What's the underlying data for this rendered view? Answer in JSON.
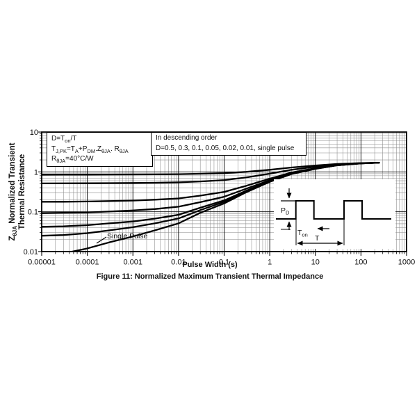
{
  "figure": {
    "caption": "Figure 11: Normalized Maximum Transient Thermal Impedance",
    "x_axis_title": "Pulse Width (s)",
    "y_axis_title": {
      "pre": "Z",
      "sub": "θJA",
      "post": " Normalized Transient",
      "line2": "Thermal Resistance"
    }
  },
  "formula_box": {
    "line1": {
      "p1": "D=T",
      "s1": "on",
      "p2": "/T"
    },
    "line2": {
      "p1": "T",
      "s1": "J,PK",
      "p2": "=T",
      "s2": "A",
      "p3": "+P",
      "s3": "DM",
      "p4": ".Z",
      "s4": "θJA",
      "p5": ". R",
      "s5": "θJA"
    },
    "line3": {
      "p1": "R",
      "s1": "θJA",
      "p2": "=40°C/W"
    }
  },
  "legend_box": {
    "line1": "In descending order",
    "line2": "D=0.5, 0.3, 0.1, 0.05, 0.02, 0.01, single pulse"
  },
  "single_pulse_label": "Single Pulse",
  "inset": {
    "pd_main": "P",
    "pd_sub": "D",
    "ton_main": "T",
    "ton_sub": "on",
    "t_label": "T"
  },
  "chart_data": {
    "type": "line",
    "title": "Normalized Maximum Transient Thermal Impedance",
    "xlabel": "Pulse Width (s)",
    "ylabel": "ZθJA Normalized Transient Thermal Resistance",
    "x_scale": "log",
    "y_scale": "log",
    "xlim": [
      1e-05,
      1000
    ],
    "ylim": [
      0.01,
      10
    ],
    "grid": true,
    "legend_note": "In descending order: D=0.5, 0.3, 0.1, 0.05, 0.02, 0.01, single pulse",
    "x_tick_labels": [
      "0.00001",
      "0.0001",
      "0.001",
      "0.01",
      "0.1",
      "1",
      "10",
      "100",
      "1000"
    ],
    "y_tick_labels": [
      "10",
      "1",
      "0.1",
      "0.01"
    ],
    "x": [
      1e-05,
      3e-05,
      0.0001,
      0.0003,
      0.001,
      0.003,
      0.01,
      0.03,
      0.1,
      0.3,
      1,
      3,
      10,
      30,
      100,
      250
    ],
    "series": [
      {
        "id": "d-0-5",
        "name": "D=0.5",
        "values": [
          0.854,
          0.855,
          0.856,
          0.859,
          0.862,
          0.867,
          0.876,
          0.897,
          0.931,
          1.003,
          1.131,
          1.292,
          1.445,
          1.581,
          1.666,
          1.7
        ]
      },
      {
        "id": "d-0-3",
        "name": "D=0.3",
        "values": [
          0.515,
          0.517,
          0.518,
          0.522,
          0.527,
          0.534,
          0.546,
          0.575,
          0.623,
          0.724,
          0.903,
          1.129,
          1.343,
          1.533,
          1.652,
          1.7
        ]
      },
      {
        "id": "d-0-1",
        "name": "D=0.1",
        "values": [
          0.177,
          0.178,
          0.181,
          0.185,
          0.191,
          0.201,
          0.216,
          0.254,
          0.315,
          0.445,
          0.675,
          0.966,
          1.241,
          1.486,
          1.639,
          1.7
        ]
      },
      {
        "id": "d-0-05",
        "name": "D=0.05",
        "values": [
          0.092,
          0.094,
          0.096,
          0.101,
          0.108,
          0.117,
          0.134,
          0.174,
          0.238,
          0.376,
          0.618,
          0.925,
          1.216,
          1.474,
          1.635,
          1.7
        ]
      },
      {
        "id": "d-0-02",
        "name": "D=0.02",
        "values": [
          0.042,
          0.043,
          0.046,
          0.051,
          0.057,
          0.067,
          0.084,
          0.126,
          0.192,
          0.334,
          0.584,
          0.9,
          1.2,
          1.467,
          1.633,
          1.7
        ]
      },
      {
        "id": "d-0-01",
        "name": "D=0.01",
        "values": [
          0.025,
          0.026,
          0.029,
          0.034,
          0.041,
          0.051,
          0.068,
          0.11,
          0.177,
          0.32,
          0.572,
          0.892,
          1.195,
          1.464,
          1.633,
          1.7
        ]
      },
      {
        "id": "single-pulse",
        "name": "single pulse",
        "values": [
          0.008,
          0.009,
          0.012,
          0.017,
          0.024,
          0.034,
          0.051,
          0.094,
          0.162,
          0.306,
          0.561,
          0.884,
          1.19,
          1.462,
          1.632,
          1.7
        ]
      }
    ]
  }
}
